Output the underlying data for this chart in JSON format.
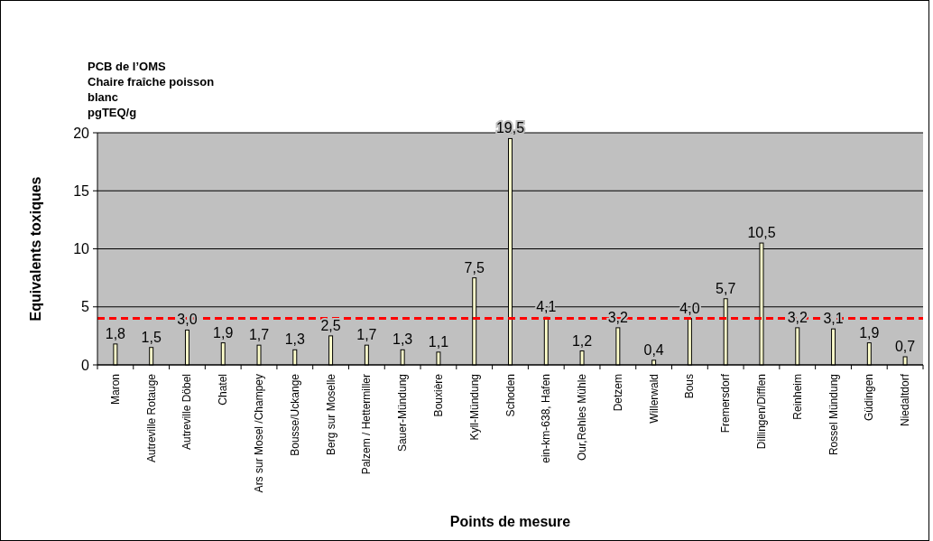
{
  "chart_data": {
    "type": "bar",
    "title": "PCB de l’OMS\nChaire fraîche poisson\nblanc\npgTEQ/g",
    "xlabel": "Points de mesure",
    "ylabel": "Equivalents  toxiques",
    "categories": [
      "Maron",
      "Autreville Rotauge",
      "Autreville Döbel",
      "Chatel",
      "Ars sur Mosel /Champey",
      "Bousse/Uckange",
      "Berg sur Moselle",
      "Palzem / Hettermiller",
      "Sauer-Mündung",
      "Bouxière",
      "Kyll-Mündung",
      "Schoden",
      "ein-km-638, Hafen",
      "Our,Rehles Mühle",
      "Detzem",
      "Willerwald",
      "Bous",
      "Fremersdorf",
      "Dillingen/Difflen",
      "Reinheim",
      "Rossel Mündung",
      "Güdingen",
      "Niedaltdorf"
    ],
    "values": [
      1.8,
      1.5,
      3.0,
      1.9,
      1.7,
      1.3,
      2.5,
      1.7,
      1.3,
      1.1,
      7.5,
      19.5,
      4.1,
      1.2,
      3.2,
      0.4,
      4.0,
      5.7,
      10.5,
      3.2,
      3.1,
      1.9,
      0.7
    ],
    "value_labels": [
      "1,8",
      "1,5",
      "3,0",
      "1,9",
      "1,7",
      "1,3",
      "2,5",
      "1,7",
      "1,3",
      "1,1",
      "7,5",
      "19,5",
      "4,1",
      "1,2",
      "3,2",
      "0,4",
      "4,0",
      "5,7",
      "10,5",
      "3,2",
      "3,1",
      "1,9",
      "0,7"
    ],
    "color": "#ffffcc",
    "ylim": [
      0,
      20
    ],
    "yticks": [
      0,
      5,
      10,
      15,
      20
    ],
    "grid": "y",
    "ref_lines": [
      {
        "axis": "y",
        "value": 4,
        "color": "#ff0000",
        "line_style": "dashed"
      }
    ]
  }
}
